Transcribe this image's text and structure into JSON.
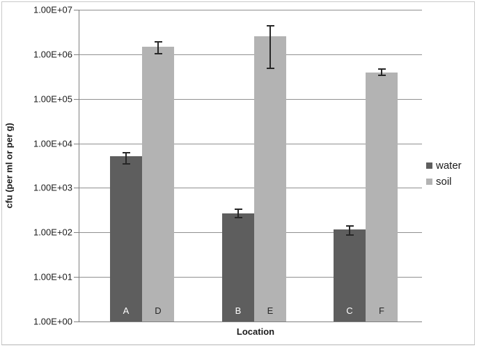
{
  "chart_data": {
    "type": "bar",
    "title": "",
    "xlabel": "Location",
    "ylabel": "cfu (per ml or per g)",
    "y_scale": "log",
    "ylim": [
      1,
      10000000
    ],
    "y_tick_labels": [
      "1.00E+07",
      "1.00E+06",
      "1.00E+05",
      "1.00E+04",
      "1.00E+03",
      "1.00E+02",
      "1.00E+01",
      "1.00E+00"
    ],
    "grid": true,
    "legend_position": "right",
    "group_axis": "Location",
    "series": [
      {
        "name": "water",
        "color": "#5e5e5e",
        "bar_label_color": "#ffffff",
        "bars": [
          {
            "label": "A",
            "value": 5200,
            "err_low": 3300,
            "err_high": 6500
          },
          {
            "label": "B",
            "value": 270,
            "err_low": 210,
            "err_high": 340
          },
          {
            "label": "C",
            "value": 115,
            "err_low": 85,
            "err_high": 145
          }
        ]
      },
      {
        "name": "soil",
        "color": "#b3b3b3",
        "bar_label_color": "#262626",
        "bars": [
          {
            "label": "D",
            "value": 1500000,
            "err_low": 1000000,
            "err_high": 2000000
          },
          {
            "label": "E",
            "value": 2500000,
            "err_low": 470000,
            "err_high": 4600000
          },
          {
            "label": "F",
            "value": 390000,
            "err_low": 320000,
            "err_high": 490000
          }
        ]
      }
    ]
  },
  "colors": {
    "gridline": "#8f8f8f",
    "axis": "#7f7f7f",
    "error_bar": "#262626",
    "text": "#1a1a1a",
    "frame_border": "#c9c9c9"
  }
}
